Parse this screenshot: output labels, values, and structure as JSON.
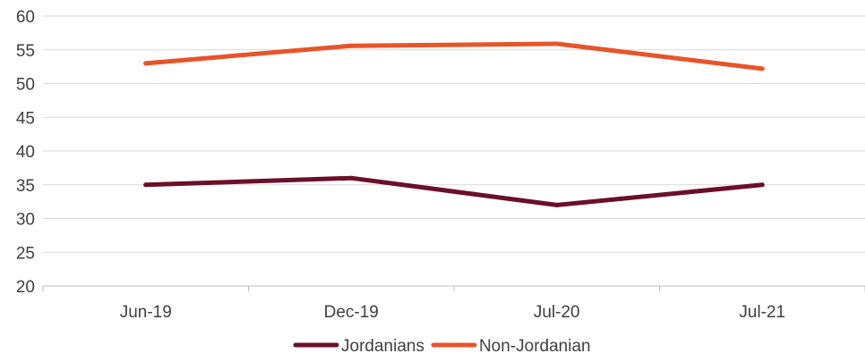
{
  "chart_data": {
    "type": "line",
    "categories": [
      "Jun-19",
      "Dec-19",
      "Jul-20",
      "Jul-21"
    ],
    "series": [
      {
        "name": "Jordanians",
        "values": [
          35,
          36,
          32,
          35
        ],
        "color": "#6b0f2a"
      },
      {
        "name": "Non-Jordanian",
        "values": [
          53,
          55.6,
          55.9,
          52.2
        ],
        "color": "#e8542a"
      }
    ],
    "y_ticks": [
      "60",
      "55",
      "50",
      "45",
      "40",
      "35",
      "30",
      "25",
      "20"
    ],
    "ylim": [
      20,
      60
    ],
    "grid": true,
    "legend_position": "bottom",
    "gridline_color": "#d9d9d9"
  }
}
